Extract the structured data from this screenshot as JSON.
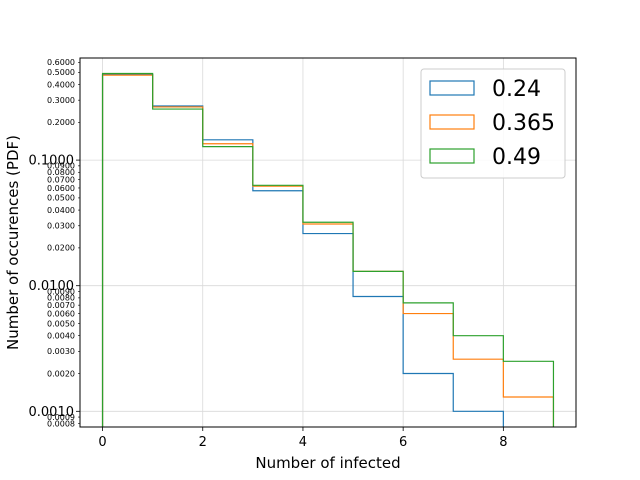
{
  "chart_data": {
    "type": "line",
    "chart_style": "step-histogram",
    "xlabel": "Number of infected",
    "ylabel": "Number of occurences (PDF)",
    "xlim": [
      -0.45,
      9.45
    ],
    "ylim": [
      0.00075,
      0.65
    ],
    "yscale": "log",
    "grid": true,
    "legend_position": "top-right",
    "x_ticks": [
      "0",
      "2",
      "4",
      "6",
      "8"
    ],
    "y_major_ticks": [
      "0.0010",
      "0.0100",
      "0.1000"
    ],
    "y_minor_ticks": [
      "0.0008",
      "0.0009",
      "0.0020",
      "0.0030",
      "0.0040",
      "0.0050",
      "0.0060",
      "0.0070",
      "0.0080",
      "0.0090",
      "0.0200",
      "0.0300",
      "0.0400",
      "0.0500",
      "0.0600",
      "0.0700",
      "0.0800",
      "0.0900",
      "0.2000",
      "0.3000",
      "0.4000",
      "0.5000",
      "0.6000"
    ],
    "bin_edges": [
      0,
      1,
      2,
      3,
      4,
      5,
      6,
      7,
      8,
      9
    ],
    "series": [
      {
        "name": "0.24",
        "color": "#1f77b4",
        "values": [
          0.48,
          0.27,
          0.145,
          0.057,
          0.026,
          0.0082,
          0.002,
          0.001
        ]
      },
      {
        "name": "0.365",
        "color": "#ff7f0e",
        "values": [
          0.475,
          0.265,
          0.135,
          0.062,
          0.031,
          0.013,
          0.006,
          0.0026,
          0.0013
        ]
      },
      {
        "name": "0.49",
        "color": "#2ca02c",
        "values": [
          0.49,
          0.255,
          0.128,
          0.063,
          0.032,
          0.013,
          0.0073,
          0.004,
          0.0025
        ]
      }
    ]
  }
}
